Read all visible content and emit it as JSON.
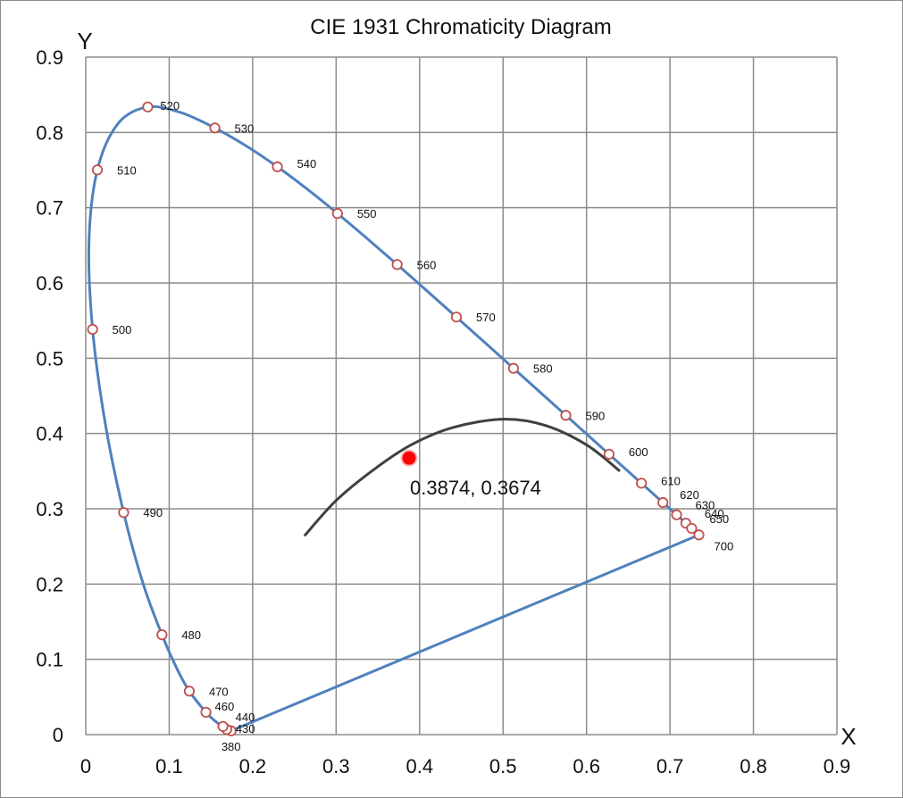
{
  "chart_data": {
    "type": "scatter",
    "title": "CIE 1931 Chromaticity Diagram",
    "xlabel": "X",
    "ylabel": "Y",
    "xlim": [
      0,
      0.9
    ],
    "ylim": [
      0,
      0.9
    ],
    "xticks": [
      "0",
      "0.1",
      "0.2",
      "0.3",
      "0.4",
      "0.5",
      "0.6",
      "0.7",
      "0.8",
      "0.9"
    ],
    "yticks": [
      "0",
      "0.1",
      "0.2",
      "0.3",
      "0.4",
      "0.5",
      "0.6",
      "0.7",
      "0.8",
      "0.9"
    ],
    "grid": true,
    "legend": "none",
    "spectral_locus": [
      {
        "nm": 380,
        "x": 0.1741,
        "y": 0.005
      },
      {
        "nm": 430,
        "x": 0.1689,
        "y": 0.0069
      },
      {
        "nm": 440,
        "x": 0.1644,
        "y": 0.0109
      },
      {
        "nm": 460,
        "x": 0.144,
        "y": 0.0297
      },
      {
        "nm": 470,
        "x": 0.1241,
        "y": 0.0578
      },
      {
        "nm": 480,
        "x": 0.0913,
        "y": 0.1327
      },
      {
        "nm": 490,
        "x": 0.0454,
        "y": 0.295
      },
      {
        "nm": 500,
        "x": 0.0082,
        "y": 0.5384
      },
      {
        "nm": 510,
        "x": 0.0139,
        "y": 0.7502
      },
      {
        "nm": 520,
        "x": 0.0743,
        "y": 0.8338
      },
      {
        "nm": 530,
        "x": 0.1547,
        "y": 0.8059
      },
      {
        "nm": 540,
        "x": 0.2296,
        "y": 0.7543
      },
      {
        "nm": 550,
        "x": 0.3016,
        "y": 0.6923
      },
      {
        "nm": 560,
        "x": 0.3731,
        "y": 0.6245
      },
      {
        "nm": 570,
        "x": 0.4441,
        "y": 0.5547
      },
      {
        "nm": 580,
        "x": 0.5125,
        "y": 0.4866
      },
      {
        "nm": 590,
        "x": 0.5752,
        "y": 0.4242
      },
      {
        "nm": 600,
        "x": 0.627,
        "y": 0.3725
      },
      {
        "nm": 610,
        "x": 0.6658,
        "y": 0.334
      },
      {
        "nm": 620,
        "x": 0.6915,
        "y": 0.3083
      },
      {
        "nm": 630,
        "x": 0.7079,
        "y": 0.292
      },
      {
        "nm": 640,
        "x": 0.719,
        "y": 0.2809
      },
      {
        "nm": 650,
        "x": 0.726,
        "y": 0.274
      },
      {
        "nm": 700,
        "x": 0.7347,
        "y": 0.2653
      }
    ],
    "locus_curve": [
      [
        0.1741,
        0.005
      ],
      [
        0.1689,
        0.0069
      ],
      [
        0.1644,
        0.0109
      ],
      [
        0.155,
        0.018
      ],
      [
        0.144,
        0.0297
      ],
      [
        0.1241,
        0.0578
      ],
      [
        0.1096,
        0.0868
      ],
      [
        0.0913,
        0.1327
      ],
      [
        0.0687,
        0.2007
      ],
      [
        0.0454,
        0.295
      ],
      [
        0.0235,
        0.4127
      ],
      [
        0.0082,
        0.5384
      ],
      [
        0.0039,
        0.6548
      ],
      [
        0.0139,
        0.7502
      ],
      [
        0.0389,
        0.812
      ],
      [
        0.0743,
        0.8338
      ],
      [
        0.1142,
        0.8262
      ],
      [
        0.1547,
        0.8059
      ],
      [
        0.1929,
        0.7816
      ],
      [
        0.2296,
        0.7543
      ],
      [
        0.2658,
        0.7243
      ],
      [
        0.3016,
        0.6923
      ],
      [
        0.3373,
        0.6589
      ],
      [
        0.3731,
        0.6245
      ],
      [
        0.4087,
        0.5896
      ],
      [
        0.4441,
        0.5547
      ],
      [
        0.4788,
        0.5202
      ],
      [
        0.5125,
        0.4866
      ],
      [
        0.5448,
        0.4544
      ],
      [
        0.5752,
        0.4242
      ],
      [
        0.6029,
        0.3965
      ],
      [
        0.627,
        0.3725
      ],
      [
        0.6482,
        0.3514
      ],
      [
        0.6658,
        0.334
      ],
      [
        0.6801,
        0.3197
      ],
      [
        0.6915,
        0.3083
      ],
      [
        0.7006,
        0.2993
      ],
      [
        0.7079,
        0.292
      ],
      [
        0.714,
        0.2859
      ],
      [
        0.719,
        0.2809
      ],
      [
        0.723,
        0.277
      ],
      [
        0.726,
        0.274
      ],
      [
        0.7347,
        0.2653
      ]
    ],
    "planckian_locus": [
      [
        0.262,
        0.264
      ],
      [
        0.3,
        0.311
      ],
      [
        0.345,
        0.352
      ],
      [
        0.39,
        0.385
      ],
      [
        0.44,
        0.408
      ],
      [
        0.5,
        0.419
      ],
      [
        0.55,
        0.411
      ],
      [
        0.6,
        0.385
      ],
      [
        0.64,
        0.35
      ]
    ],
    "marked_point": {
      "x": 0.3874,
      "y": 0.3674,
      "label": "0.3874, 0.3674"
    },
    "colors": {
      "locus": "#4f81bd",
      "marker_stroke": "#c0504d",
      "planckian": "#404040",
      "point": "#ff0000",
      "grid": "#8c8c8c"
    }
  }
}
